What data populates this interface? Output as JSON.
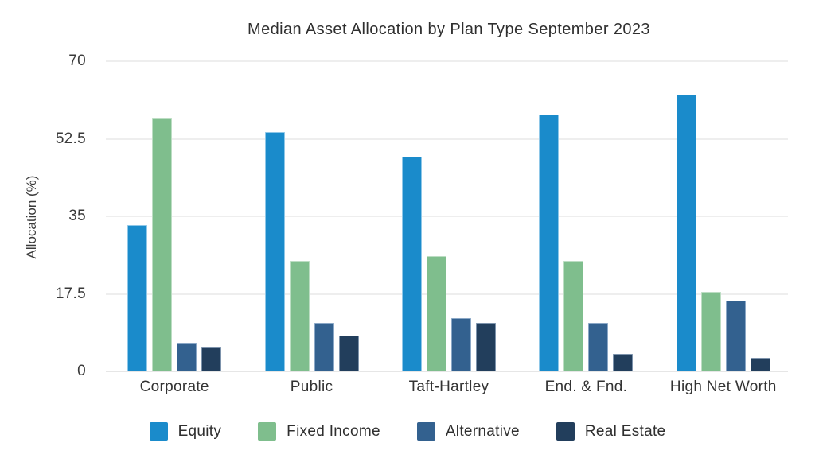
{
  "page": {
    "background_color": "#ffffff",
    "text_color": "#3a3a3a"
  },
  "chart_data": {
    "type": "bar",
    "title": "Median Asset Allocation by Plan Type September 2023",
    "xlabel": "",
    "ylabel": "Allocation (%)",
    "ylim": [
      0,
      70
    ],
    "yticks": [
      0,
      17.5,
      35,
      52.5,
      70
    ],
    "ytick_labels": [
      "0",
      "17.5",
      "35",
      "52.5",
      "70"
    ],
    "grid": true,
    "legend_position": "bottom",
    "categories": [
      "Corporate",
      "Public",
      "Taft-Hartley",
      "End. & Fnd.",
      "High Net Worth"
    ],
    "series": [
      {
        "name": "Equity",
        "color": "#1a8bcb",
        "border_color": "#8ec7e8",
        "values": [
          33,
          54,
          48.5,
          58,
          62.5
        ]
      },
      {
        "name": "Fixed Income",
        "color": "#7fbe8d",
        "border_color": "#bcddc3",
        "values": [
          57,
          25,
          26,
          25,
          18
        ]
      },
      {
        "name": "Alternative",
        "color": "#33618f",
        "border_color": "#8aa7c6",
        "values": [
          6.5,
          11,
          12,
          11,
          16
        ]
      },
      {
        "name": "Real Estate",
        "color": "#223e5c",
        "border_color": "#7d93ac",
        "values": [
          5.5,
          8,
          11,
          4,
          3
        ]
      }
    ]
  }
}
